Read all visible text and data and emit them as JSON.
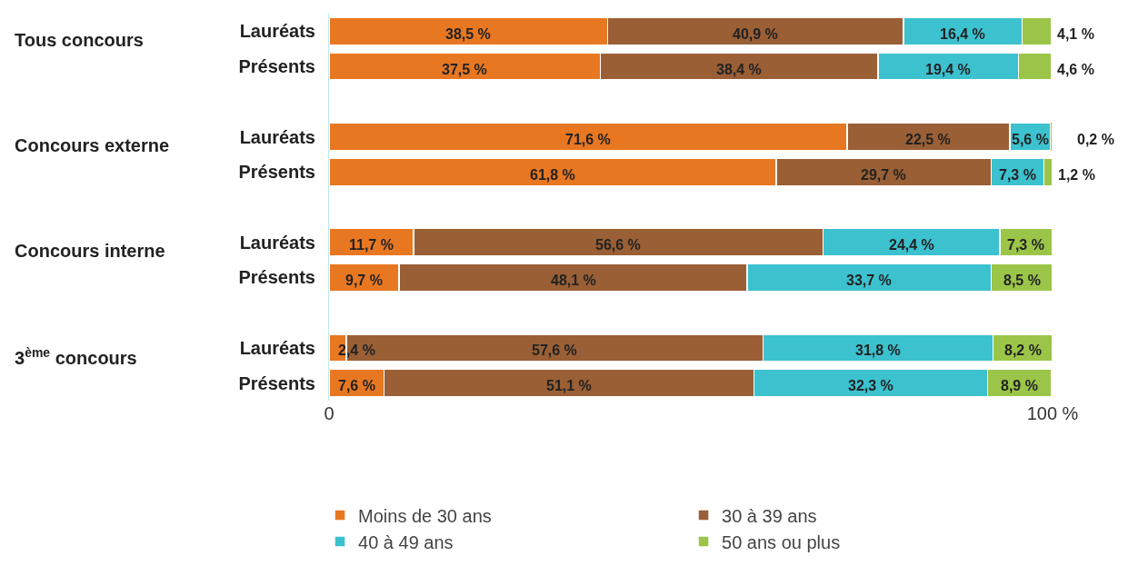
{
  "chart_data": {
    "type": "bar",
    "orientation": "horizontal",
    "stacked": true,
    "categories": [
      "Lauréats",
      "Présents",
      "Lauréats",
      "Présents",
      "Lauréats",
      "Présents",
      "Lauréats",
      "Présents"
    ],
    "series": [
      {
        "name": "Moins de 30 ans",
        "color": "#e87722",
        "values": [
          38.5,
          37.5,
          71.6,
          61.8,
          11.7,
          9.7,
          2.4,
          7.6
        ],
        "value_labels": [
          "38,5 %",
          "37,5 %",
          "71,6 %",
          "61,8 %",
          "11,7 %",
          "9,7 %",
          "2,4 %",
          "7,6 %"
        ]
      },
      {
        "name": "30 à 39 ans",
        "color": "#9a5f35",
        "values": [
          40.9,
          38.4,
          22.5,
          29.7,
          56.6,
          48.1,
          57.6,
          51.1
        ],
        "value_labels": [
          "40,9 %",
          "38,4 %",
          "22,5 %",
          "29,7 %",
          "56,6 %",
          "48,1 %",
          "57,6 %",
          "51,1 %"
        ]
      },
      {
        "name": "40 à 49 ans",
        "color": "#3cc1cf",
        "values": [
          16.4,
          19.4,
          5.6,
          7.3,
          24.4,
          33.7,
          31.8,
          32.3
        ],
        "value_labels": [
          "16,4 %",
          "19,4 %",
          "5,6 %",
          "7,3 %",
          "24,4 %",
          "33,7 %",
          "31,8 %",
          "32,3 %"
        ]
      },
      {
        "name": "50 ans ou plus",
        "color": "#9bc548",
        "values": [
          4.1,
          4.6,
          0.2,
          1.2,
          7.3,
          8.5,
          8.2,
          8.9
        ],
        "value_labels": [
          "4,1 %",
          "4,6 %",
          "0,2 %",
          "1,2 %",
          "7,3 %",
          "8,5 %",
          "8,2 %",
          "8,9 %"
        ]
      }
    ],
    "xlim": [
      0,
      100
    ],
    "xticks": [
      0,
      {
        "value": 100,
        "label": "100 %"
      }
    ],
    "annotations": [
      "Tous concours",
      "Concours externe",
      "Concours interne",
      "3$^{ème}$ concours"
    ],
    "legend": "bottom"
  }
}
